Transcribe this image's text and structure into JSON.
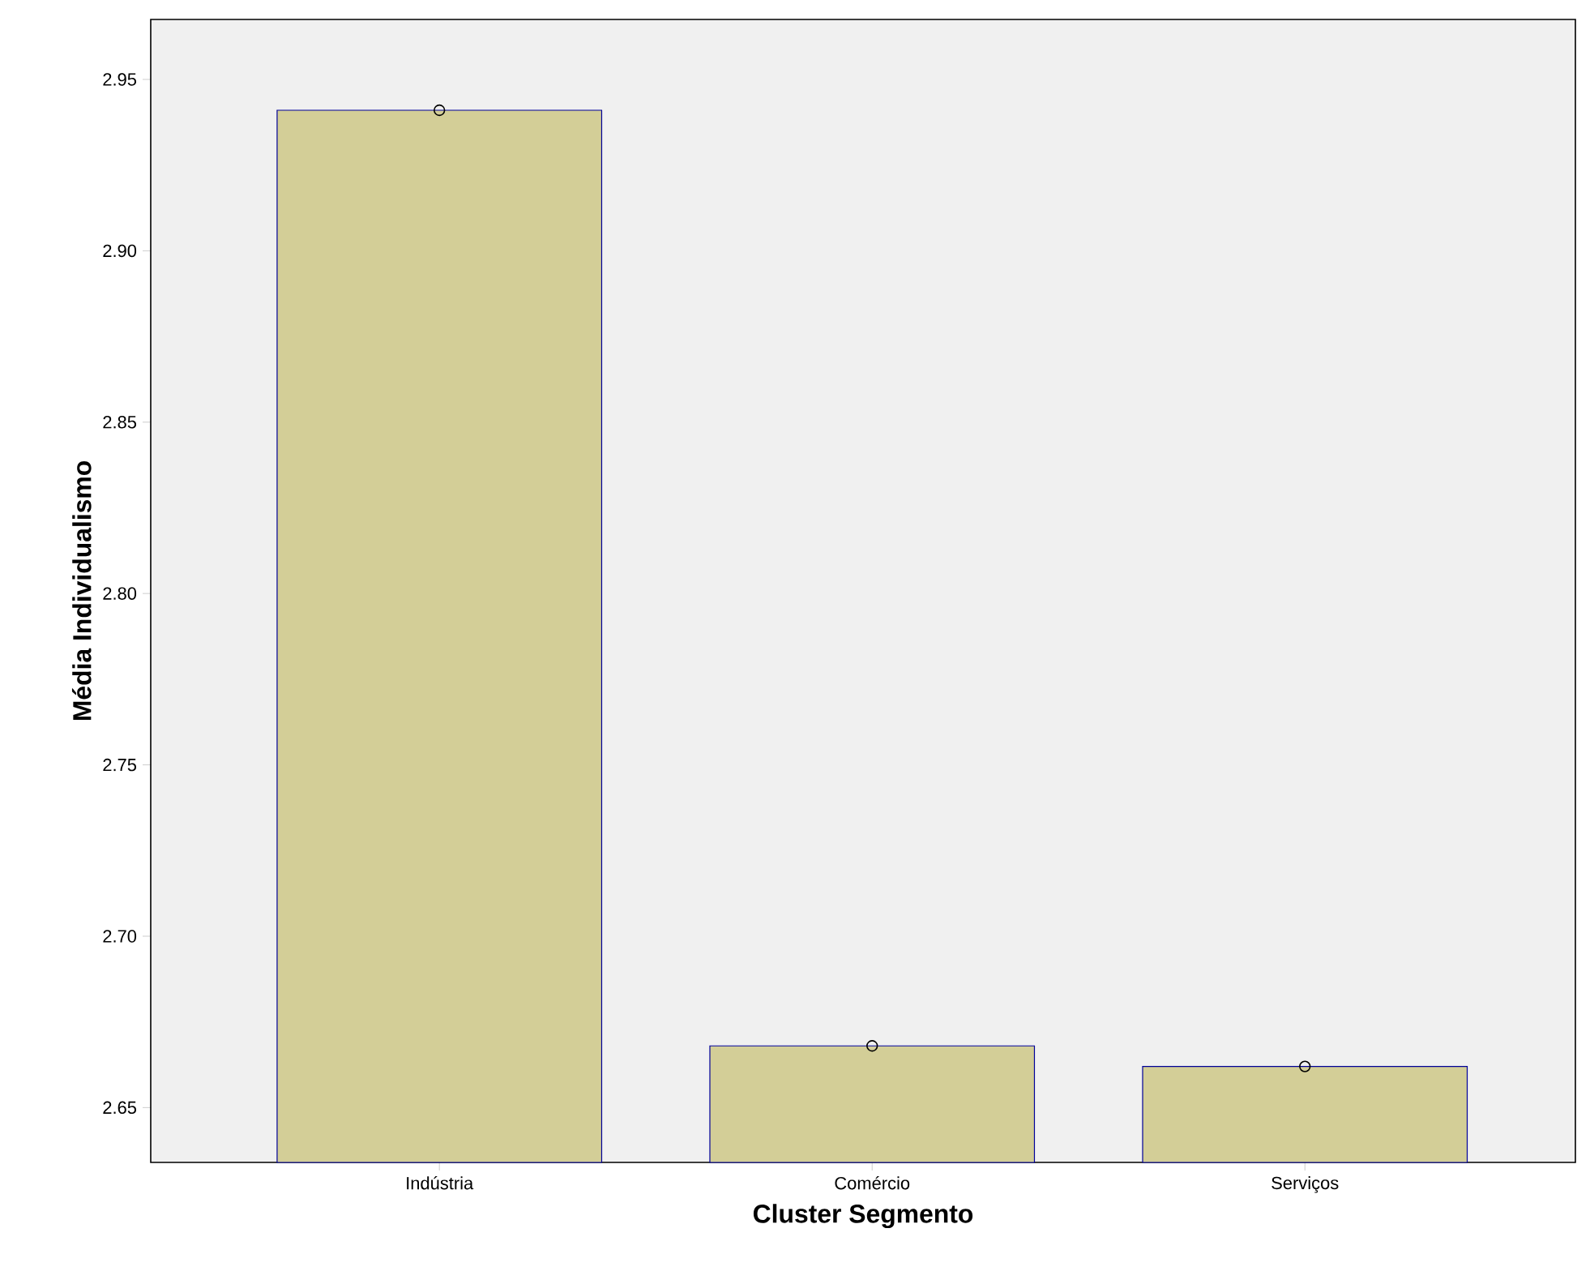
{
  "chart_data": {
    "type": "bar",
    "xlabel": "Cluster Segmento",
    "ylabel": "Média Individualismo",
    "categories": [
      "Indústria",
      "Comércio",
      "Serviços"
    ],
    "ylim": [
      2.634,
      2.9675
    ],
    "yticks": [
      {
        "value": 2.65,
        "label": "2.65"
      },
      {
        "value": 2.7,
        "label": "2.70"
      },
      {
        "value": 2.75,
        "label": "2.75"
      },
      {
        "value": 2.8,
        "label": "2.80"
      },
      {
        "value": 2.85,
        "label": "2.85"
      },
      {
        "value": 2.9,
        "label": "2.90"
      },
      {
        "value": 2.95,
        "label": "2.95"
      }
    ],
    "series": [
      {
        "color": "#d3ce97",
        "values": [
          2.941,
          2.668,
          2.662
        ]
      },
      {
        "type": "scatter",
        "color": "#000000",
        "marker": "circle",
        "x": [
          "Indústria",
          "Comércio",
          "Serviços"
        ],
        "values": [
          2.941,
          2.668,
          2.662
        ]
      }
    ]
  }
}
